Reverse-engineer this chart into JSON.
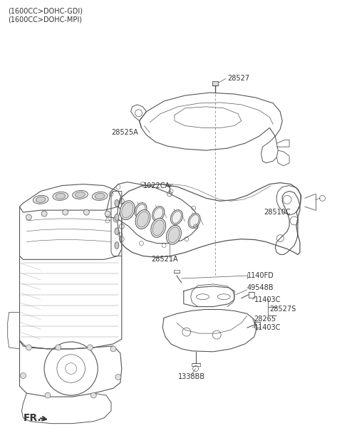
{
  "title_lines": [
    "(1600CC>DOHC-GDI)",
    "(1600CC>DOHC-MPI)"
  ],
  "bg_color": "#ffffff",
  "line_color": "#555555",
  "text_color": "#333333",
  "title_fontsize": 7,
  "label_fontsize": 7,
  "fr_label": "FR.",
  "figsize": [
    4.8,
    6.15
  ],
  "dpi": 100
}
